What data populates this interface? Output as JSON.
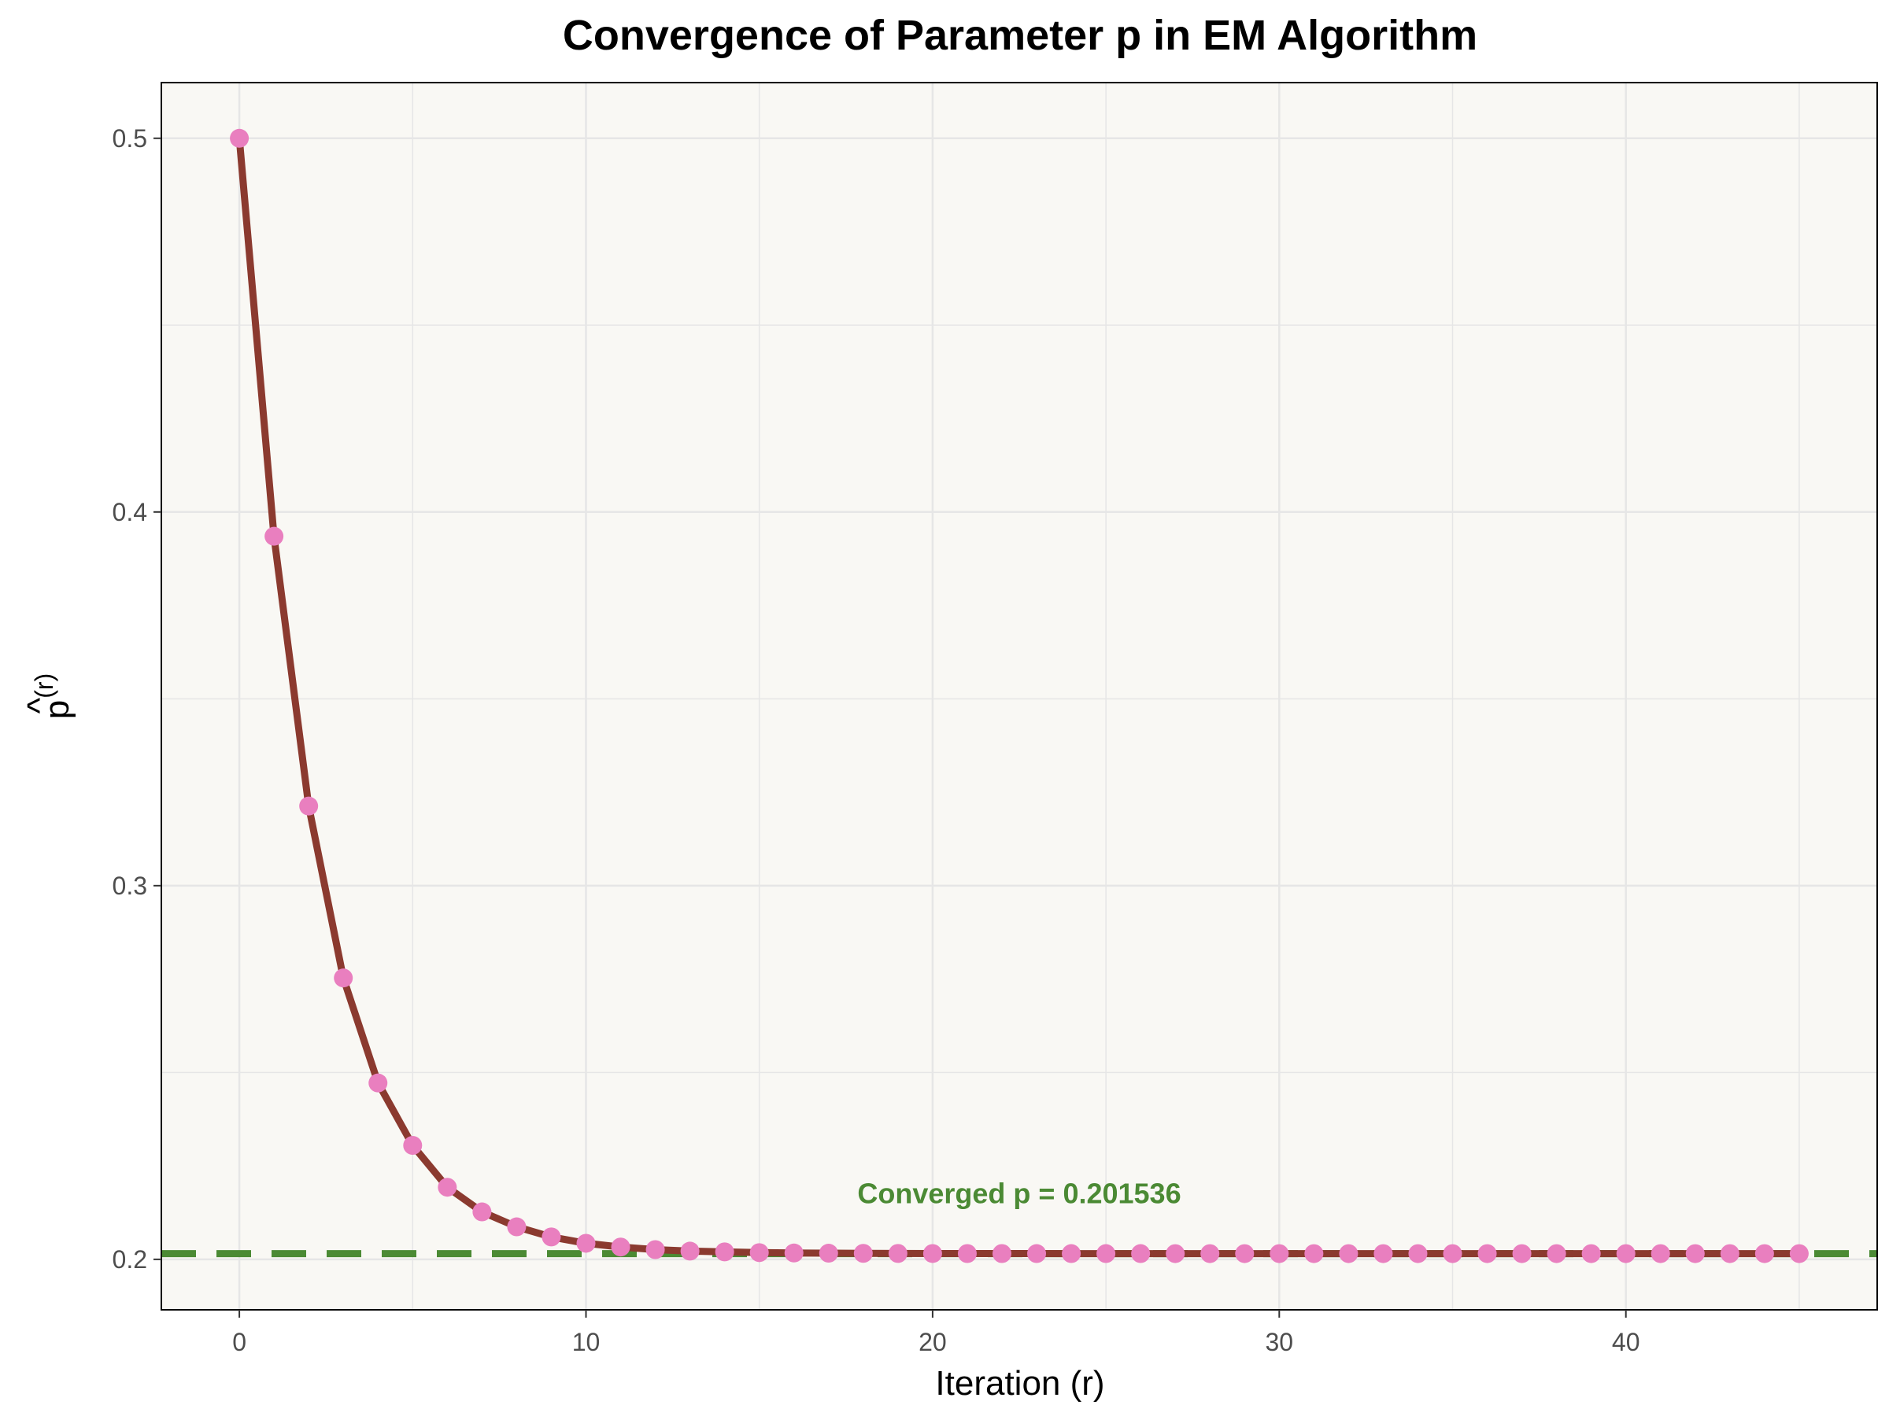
{
  "colors": {
    "panel_background": "#f9f8f4",
    "grid": "#e6e6e6",
    "line": "#8b3a2f",
    "points": "#e97fbf",
    "converged_line": "#4b8a34",
    "annotation": "#4b8a34"
  },
  "chart_data": {
    "type": "line",
    "title": "Convergence of Parameter p in EM Algorithm",
    "xlabel": "Iteration (r)",
    "ylabel_main": "p",
    "ylabel_hat": "^",
    "ylabel_sup": "(r)",
    "xlim": [
      -2.25,
      47.25
    ],
    "ylim": [
      0.1865,
      0.5149
    ],
    "x_ticks": [
      0,
      10,
      20,
      30,
      40
    ],
    "x_tick_labels": [
      "0",
      "10",
      "20",
      "30",
      "40"
    ],
    "y_ticks": [
      0.2,
      0.3,
      0.4,
      0.5
    ],
    "y_tick_labels": [
      "0.2",
      "0.3",
      "0.4",
      "0.5"
    ],
    "y_minor_ticks": [
      0.25,
      0.35,
      0.45
    ],
    "grid": true,
    "legend": "none",
    "series": [
      {
        "x": [
          0,
          1,
          2,
          3,
          4,
          5,
          6,
          7,
          8,
          9,
          10,
          11,
          12,
          13,
          14,
          15,
          16,
          17,
          18,
          19,
          20,
          21,
          22,
          23,
          24,
          25,
          26,
          27,
          28,
          29,
          30,
          31,
          32,
          33,
          34,
          35,
          36,
          37,
          38,
          39,
          40,
          41,
          42,
          43,
          44,
          45
        ],
        "y": [
          0.5,
          0.3935,
          0.3213,
          0.2753,
          0.2472,
          0.2305,
          0.2193,
          0.2127,
          0.2087,
          0.206,
          0.2043,
          0.2033,
          0.2026,
          0.2022,
          0.202,
          0.2018,
          0.2017,
          0.20165,
          0.2016,
          0.20158,
          0.20156,
          0.201555,
          0.20155,
          0.201545,
          0.20154,
          0.20154,
          0.20154,
          0.201538,
          0.201538,
          0.201537,
          0.201537,
          0.201536,
          0.201536,
          0.201536,
          0.201536,
          0.201536,
          0.201536,
          0.201536,
          0.201536,
          0.201536,
          0.201536,
          0.201536,
          0.201536,
          0.201536,
          0.201536,
          0.201536
        ]
      }
    ],
    "reference_line": {
      "y": 0.201536,
      "style": "dashed"
    },
    "annotation": {
      "text": "Converged p = 0.201536",
      "x": 22.5,
      "y": 0.2175
    }
  }
}
